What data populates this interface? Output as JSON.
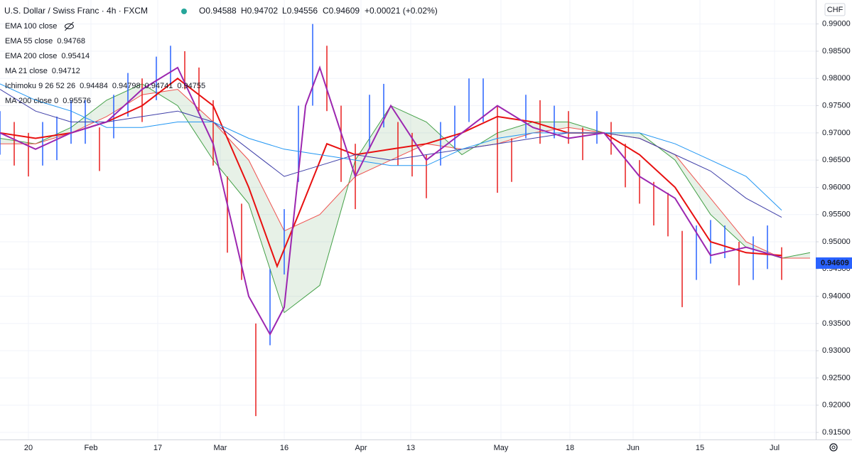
{
  "chart_data": {
    "type": "ohlc-bars",
    "title": "U.S. Dollar / Swiss Franc · 4h · FXCM",
    "quote": {
      "open": "O0.94588",
      "high": "H0.94702",
      "low": "L0.94556",
      "close": "C0.94609",
      "change": "+0.00021 (+0.02%)"
    },
    "currency": "CHF",
    "last_price": 0.94609,
    "up_color": "#2962ff",
    "down_color": "#e91e1e",
    "grid": true,
    "xlim": [
      0,
      114.8
    ],
    "xticks": [
      {
        "value": 4,
        "label": "20"
      },
      {
        "value": 12.8,
        "label": "Feb"
      },
      {
        "value": 22.2,
        "label": "17"
      },
      {
        "value": 31,
        "label": "Mar"
      },
      {
        "value": 40,
        "label": "16"
      },
      {
        "value": 50.8,
        "label": "Apr"
      },
      {
        "value": 57.8,
        "label": "13"
      },
      {
        "value": 70.5,
        "label": "May"
      },
      {
        "value": 80.2,
        "label": "18"
      },
      {
        "value": 89.1,
        "label": "Jun"
      },
      {
        "value": 98.5,
        "label": "15"
      },
      {
        "value": 109,
        "label": "Jul"
      }
    ],
    "ylim": [
      0.9137,
      0.9944
    ],
    "yticks": [
      {
        "value": 0.915,
        "label": "0.91500"
      },
      {
        "value": 0.92,
        "label": "0.92000"
      },
      {
        "value": 0.925,
        "label": "0.92500"
      },
      {
        "value": 0.93,
        "label": "0.93000"
      },
      {
        "value": 0.935,
        "label": "0.93500"
      },
      {
        "value": 0.94,
        "label": "0.94000"
      },
      {
        "value": 0.945,
        "label": "0.94500"
      },
      {
        "value": 0.95,
        "label": "0.95000"
      },
      {
        "value": 0.955,
        "label": "0.95500"
      },
      {
        "value": 0.96,
        "label": "0.96000"
      },
      {
        "value": 0.965,
        "label": "0.96500"
      },
      {
        "value": 0.97,
        "label": "0.97000"
      },
      {
        "value": 0.975,
        "label": "0.97500"
      },
      {
        "value": 0.98,
        "label": "0.98000"
      },
      {
        "value": 0.985,
        "label": "0.98500"
      },
      {
        "value": 0.99,
        "label": "0.99000"
      }
    ],
    "bars": {
      "x": [
        0,
        2,
        4,
        6,
        8,
        10,
        12,
        14,
        16,
        18,
        20,
        22,
        24,
        26,
        28,
        30,
        32,
        34,
        36,
        38,
        40,
        42,
        44,
        46,
        48,
        50,
        52,
        54,
        56,
        58,
        60,
        62,
        64,
        66,
        68,
        70,
        72,
        74,
        76,
        78,
        80,
        82,
        84,
        86,
        88,
        90,
        92,
        94,
        96,
        98,
        100,
        102,
        104,
        106,
        108,
        110
      ],
      "high": [
        0.974,
        0.972,
        0.97,
        0.972,
        0.973,
        0.976,
        0.976,
        0.971,
        0.977,
        0.981,
        0.98,
        0.984,
        0.986,
        0.985,
        0.982,
        0.976,
        0.962,
        0.957,
        0.935,
        0.945,
        0.956,
        0.975,
        0.99,
        0.986,
        0.975,
        0.968,
        0.977,
        0.979,
        0.972,
        0.97,
        0.966,
        0.972,
        0.975,
        0.98,
        0.98,
        0.975,
        0.969,
        0.977,
        0.976,
        0.975,
        0.974,
        0.971,
        0.974,
        0.972,
        0.968,
        0.965,
        0.961,
        0.959,
        0.952,
        0.953,
        0.954,
        0.953,
        0.95,
        0.951,
        0.953,
        0.949
      ],
      "low": [
        0.966,
        0.964,
        0.962,
        0.964,
        0.965,
        0.968,
        0.968,
        0.963,
        0.969,
        0.973,
        0.972,
        0.976,
        0.979,
        0.978,
        0.974,
        0.964,
        0.948,
        0.943,
        0.918,
        0.931,
        0.944,
        0.961,
        0.975,
        0.974,
        0.961,
        0.956,
        0.967,
        0.971,
        0.964,
        0.962,
        0.958,
        0.964,
        0.967,
        0.972,
        0.972,
        0.959,
        0.961,
        0.969,
        0.968,
        0.969,
        0.968,
        0.965,
        0.968,
        0.966,
        0.96,
        0.957,
        0.953,
        0.951,
        0.938,
        0.943,
        0.946,
        0.947,
        0.942,
        0.943,
        0.945,
        0.943
      ]
    },
    "lines": [
      {
        "name": "EMA 55 close",
        "color": "#e81010",
        "width": 2,
        "x": [
          0,
          5,
          10,
          15,
          20,
          25,
          30,
          35,
          39,
          42,
          46,
          50,
          55,
          60,
          65,
          70,
          75,
          80,
          85,
          90,
          95,
          100,
          105,
          110
        ],
        "values": [
          0.97,
          0.969,
          0.97,
          0.972,
          0.975,
          0.98,
          0.975,
          0.96,
          0.9455,
          0.955,
          0.968,
          0.966,
          0.967,
          0.968,
          0.97,
          0.973,
          0.972,
          0.97,
          0.97,
          0.966,
          0.96,
          0.95,
          0.948,
          0.9475
        ]
      },
      {
        "name": "EMA 200 close",
        "color": "#3f3fa8",
        "width": 1,
        "x": [
          0,
          5,
          10,
          15,
          20,
          25,
          30,
          35,
          40,
          45,
          50,
          55,
          60,
          65,
          70,
          75,
          80,
          85,
          90,
          95,
          100,
          105,
          110
        ],
        "values": [
          0.978,
          0.974,
          0.972,
          0.972,
          0.973,
          0.974,
          0.972,
          0.967,
          0.962,
          0.964,
          0.966,
          0.965,
          0.966,
          0.967,
          0.968,
          0.969,
          0.97,
          0.97,
          0.969,
          0.966,
          0.963,
          0.958,
          0.9545
        ]
      },
      {
        "name": "MA 200 close 0",
        "color": "#2196f3",
        "width": 1,
        "x": [
          0,
          5,
          10,
          15,
          20,
          25,
          30,
          35,
          40,
          45,
          50,
          55,
          60,
          65,
          70,
          75,
          80,
          85,
          90,
          95,
          100,
          105,
          110
        ],
        "values": [
          0.979,
          0.976,
          0.974,
          0.971,
          0.971,
          0.972,
          0.972,
          0.969,
          0.967,
          0.966,
          0.965,
          0.964,
          0.964,
          0.967,
          0.969,
          0.97,
          0.97,
          0.97,
          0.97,
          0.968,
          0.965,
          0.962,
          0.9558
        ]
      },
      {
        "name": "MA 21 close",
        "color": "#9c27b0",
        "width": 2,
        "x": [
          0,
          5,
          10,
          15,
          20,
          25,
          30,
          35,
          38,
          40,
          43,
          45,
          50,
          55,
          60,
          65,
          70,
          75,
          80,
          85,
          90,
          95,
          100,
          105,
          110
        ],
        "values": [
          0.97,
          0.967,
          0.97,
          0.972,
          0.978,
          0.982,
          0.968,
          0.94,
          0.933,
          0.938,
          0.975,
          0.982,
          0.962,
          0.975,
          0.965,
          0.97,
          0.975,
          0.971,
          0.969,
          0.97,
          0.962,
          0.958,
          0.9475,
          0.949,
          0.9471
        ]
      }
    ],
    "cloud": {
      "x": [
        0,
        5,
        10,
        15,
        20,
        25,
        30,
        35,
        40,
        45,
        50,
        55,
        60,
        65,
        70,
        75,
        80,
        85,
        90,
        95,
        100,
        105,
        110,
        114
      ],
      "span_a": [
        0.969,
        0.968,
        0.971,
        0.976,
        0.979,
        0.975,
        0.965,
        0.957,
        0.937,
        0.942,
        0.965,
        0.975,
        0.972,
        0.966,
        0.97,
        0.972,
        0.972,
        0.97,
        0.97,
        0.965,
        0.955,
        0.949,
        0.947,
        0.948
      ],
      "span_b": [
        0.968,
        0.968,
        0.97,
        0.973,
        0.977,
        0.978,
        0.972,
        0.965,
        0.952,
        0.955,
        0.962,
        0.965,
        0.968,
        0.967,
        0.968,
        0.97,
        0.971,
        0.97,
        0.969,
        0.966,
        0.958,
        0.95,
        0.947,
        0.947
      ],
      "color_a": "#43a047",
      "color_b": "#ef5350",
      "fill": "rgba(120,180,120,0.18)"
    },
    "legend": [
      {
        "name": "EMA 100 close",
        "color": "#9e9e9e"
      },
      {
        "name": "EMA 55 close",
        "values": [
          0.94768
        ],
        "colors": [
          "#e81010"
        ]
      },
      {
        "name": "EMA 200 close",
        "values": [
          0.95414
        ],
        "colors": [
          "#3f3fa8"
        ]
      },
      {
        "name": "MA 21 close",
        "values": [
          0.94712
        ],
        "colors": [
          "#9c27b0"
        ]
      },
      {
        "name": "Ichimoku 9 26 52 26",
        "values": [
          0.94484,
          0.94798,
          0.94741,
          0.94755
        ],
        "colors": [
          "#2196f3",
          "#8b1a1a",
          "#43a047",
          "#ef5350"
        ]
      },
      {
        "name": "MA 200 close 0",
        "values": [
          0.95576
        ],
        "colors": [
          "#2196f3"
        ]
      }
    ]
  }
}
